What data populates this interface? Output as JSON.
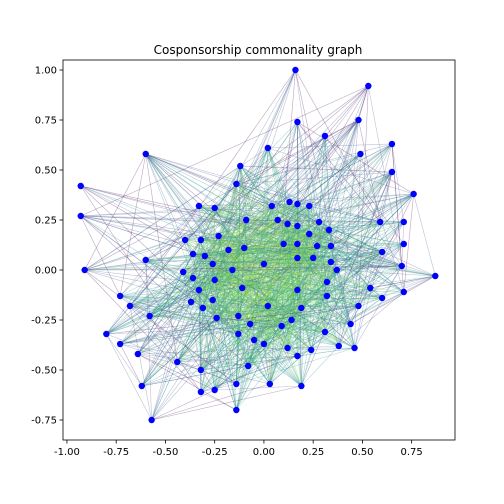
{
  "chart_data": {
    "type": "scatter",
    "title": "Cosponsorship commonality graph",
    "xlabel": "",
    "ylabel": "",
    "xlim": [
      -1.02,
      0.97
    ],
    "ylim": [
      -0.85,
      1.05
    ],
    "xticks": [
      "-1.00",
      "-0.75",
      "-0.50",
      "-0.25",
      "0.00",
      "0.25",
      "0.50",
      "0.75"
    ],
    "xtick_values": [
      -1.0,
      -0.75,
      -0.5,
      -0.25,
      0.0,
      0.25,
      0.5,
      0.75
    ],
    "yticks": [
      "-0.75",
      "-0.50",
      "-0.25",
      "0.00",
      "0.25",
      "0.50",
      "0.75",
      "1.00"
    ],
    "ytick_values": [
      -0.75,
      -0.5,
      -0.25,
      0.0,
      0.25,
      0.5,
      0.75,
      1.0
    ],
    "grid": false,
    "node_color": "#0000ff",
    "edge_colors": [
      "#440154",
      "#3b528b",
      "#21918c",
      "#5ec962",
      "#bddf26"
    ],
    "nodes": [
      {
        "x": 0.16,
        "y": 1.0
      },
      {
        "x": 0.53,
        "y": 0.92
      },
      {
        "x": 0.17,
        "y": 0.74
      },
      {
        "x": 0.48,
        "y": 0.75
      },
      {
        "x": 0.31,
        "y": 0.67
      },
      {
        "x": 0.65,
        "y": 0.63
      },
      {
        "x": -0.6,
        "y": 0.58
      },
      {
        "x": 0.02,
        "y": 0.61
      },
      {
        "x": 0.49,
        "y": 0.58
      },
      {
        "x": -0.12,
        "y": 0.52
      },
      {
        "x": 0.65,
        "y": 0.49
      },
      {
        "x": -0.14,
        "y": 0.43
      },
      {
        "x": -0.93,
        "y": 0.42
      },
      {
        "x": 0.76,
        "y": 0.38
      },
      {
        "x": -0.33,
        "y": 0.32
      },
      {
        "x": -0.25,
        "y": 0.31
      },
      {
        "x": 0.04,
        "y": 0.32
      },
      {
        "x": 0.13,
        "y": 0.34
      },
      {
        "x": 0.17,
        "y": 0.33
      },
      {
        "x": 0.23,
        "y": 0.32
      },
      {
        "x": -0.93,
        "y": 0.27
      },
      {
        "x": 0.59,
        "y": 0.24
      },
      {
        "x": 0.71,
        "y": 0.24
      },
      {
        "x": -0.09,
        "y": 0.25
      },
      {
        "x": 0.07,
        "y": 0.25
      },
      {
        "x": 0.12,
        "y": 0.23
      },
      {
        "x": 0.28,
        "y": 0.24
      },
      {
        "x": 0.17,
        "y": 0.22
      },
      {
        "x": 0.33,
        "y": 0.2
      },
      {
        "x": 0.23,
        "y": 0.18
      },
      {
        "x": -0.4,
        "y": 0.15
      },
      {
        "x": -0.32,
        "y": 0.15
      },
      {
        "x": -0.23,
        "y": 0.17
      },
      {
        "x": 0.1,
        "y": 0.13
      },
      {
        "x": 0.17,
        "y": 0.13
      },
      {
        "x": 0.27,
        "y": 0.12
      },
      {
        "x": 0.34,
        "y": 0.12
      },
      {
        "x": 0.71,
        "y": 0.13
      },
      {
        "x": -0.36,
        "y": 0.08
      },
      {
        "x": -0.3,
        "y": 0.07
      },
      {
        "x": -0.18,
        "y": 0.1
      },
      {
        "x": -0.1,
        "y": 0.11
      },
      {
        "x": 0.6,
        "y": 0.09
      },
      {
        "x": 0.17,
        "y": 0.06
      },
      {
        "x": 0.25,
        "y": 0.06
      },
      {
        "x": -0.6,
        "y": 0.05
      },
      {
        "x": -0.41,
        "y": -0.01
      },
      {
        "x": -0.26,
        "y": 0.03
      },
      {
        "x": -0.16,
        "y": 0.0
      },
      {
        "x": 0.0,
        "y": 0.03
      },
      {
        "x": 0.34,
        "y": 0.04
      },
      {
        "x": -0.91,
        "y": 0.0
      },
      {
        "x": 0.37,
        "y": 0.0
      },
      {
        "x": 0.7,
        "y": 0.02
      },
      {
        "x": 0.87,
        "y": -0.03
      },
      {
        "x": -0.36,
        "y": -0.04
      },
      {
        "x": -0.25,
        "y": -0.05
      },
      {
        "x": 0.32,
        "y": -0.06
      },
      {
        "x": -0.33,
        "y": -0.1
      },
      {
        "x": -0.11,
        "y": -0.09
      },
      {
        "x": 0.17,
        "y": -0.1
      },
      {
        "x": 0.54,
        "y": -0.09
      },
      {
        "x": 0.71,
        "y": -0.11
      },
      {
        "x": -0.73,
        "y": -0.13
      },
      {
        "x": -0.37,
        "y": -0.16
      },
      {
        "x": -0.26,
        "y": -0.15
      },
      {
        "x": 0.6,
        "y": -0.14
      },
      {
        "x": 0.32,
        "y": -0.13
      },
      {
        "x": -0.68,
        "y": -0.18
      },
      {
        "x": -0.31,
        "y": -0.19
      },
      {
        "x": 0.02,
        "y": -0.18
      },
      {
        "x": 0.19,
        "y": -0.19
      },
      {
        "x": 0.48,
        "y": -0.18
      },
      {
        "x": -0.58,
        "y": -0.23
      },
      {
        "x": -0.24,
        "y": -0.24
      },
      {
        "x": -0.13,
        "y": -0.23
      },
      {
        "x": 0.14,
        "y": -0.25
      },
      {
        "x": -0.07,
        "y": -0.27
      },
      {
        "x": 0.09,
        "y": -0.28
      },
      {
        "x": 0.44,
        "y": -0.27
      },
      {
        "x": -0.8,
        "y": -0.32
      },
      {
        "x": -0.13,
        "y": -0.32
      },
      {
        "x": 0.31,
        "y": -0.31
      },
      {
        "x": -0.05,
        "y": -0.35
      },
      {
        "x": 0.0,
        "y": -0.37
      },
      {
        "x": -0.73,
        "y": -0.37
      },
      {
        "x": 0.38,
        "y": -0.38
      },
      {
        "x": 0.46,
        "y": -0.39
      },
      {
        "x": 0.12,
        "y": -0.39
      },
      {
        "x": 0.24,
        "y": -0.4
      },
      {
        "x": -0.64,
        "y": -0.42
      },
      {
        "x": 0.17,
        "y": -0.43
      },
      {
        "x": -0.44,
        "y": -0.46
      },
      {
        "x": -0.08,
        "y": -0.48
      },
      {
        "x": -0.32,
        "y": -0.5
      },
      {
        "x": 0.03,
        "y": -0.57
      },
      {
        "x": -0.14,
        "y": -0.57
      },
      {
        "x": 0.19,
        "y": -0.58
      },
      {
        "x": -0.62,
        "y": -0.58
      },
      {
        "x": -0.32,
        "y": -0.61
      },
      {
        "x": -0.25,
        "y": -0.6
      },
      {
        "x": -0.14,
        "y": -0.7
      },
      {
        "x": -0.57,
        "y": -0.75
      }
    ]
  }
}
